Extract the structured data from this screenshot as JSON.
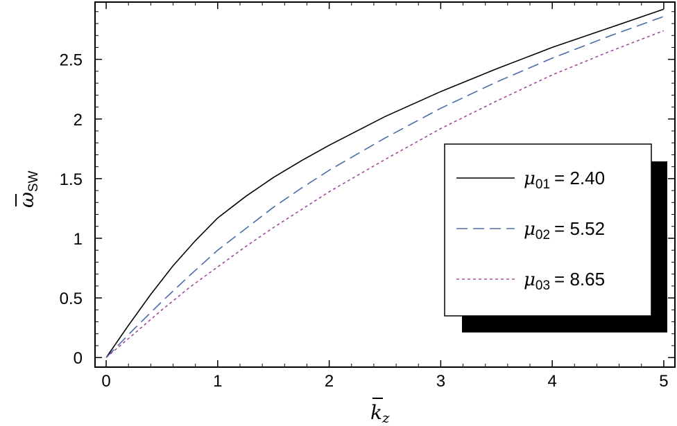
{
  "chart_data": {
    "type": "line",
    "title": "",
    "xlabel": "k_z",
    "ylabel": "ω_SW",
    "xlim": [
      -0.1,
      5.1
    ],
    "ylim": [
      -0.08,
      2.98
    ],
    "xticks": [
      0,
      1,
      2,
      3,
      4,
      5
    ],
    "xtick_labels": [
      "0",
      "1",
      "2",
      "3",
      "4",
      "5"
    ],
    "yticks": [
      0,
      0.5,
      1,
      1.5,
      2,
      2.5
    ],
    "ytick_labels": [
      "0",
      "0.5",
      "1",
      "1.5",
      "2",
      "2.5"
    ],
    "grid": false,
    "legend_position": "right",
    "series": [
      {
        "name": "μ01 = 2.40",
        "symbol": "μ",
        "sub": "01",
        "value_text": "= 2.40",
        "color": "#000000",
        "dash": "solid",
        "x": [
          0,
          0.2,
          0.4,
          0.6,
          0.8,
          1.0,
          1.25,
          1.5,
          1.75,
          2.0,
          2.5,
          3.0,
          3.5,
          4.0,
          4.5,
          5.0
        ],
        "y": [
          0,
          0.27,
          0.53,
          0.77,
          0.98,
          1.17,
          1.35,
          1.51,
          1.65,
          1.78,
          2.02,
          2.23,
          2.42,
          2.6,
          2.76,
          2.92
        ]
      },
      {
        "name": "μ02 = 5.52",
        "symbol": "μ",
        "sub": "02",
        "value_text": "= 5.52",
        "color": "#4a6aaa",
        "dash": "long",
        "x": [
          0,
          0.25,
          0.5,
          0.75,
          1.0,
          1.25,
          1.5,
          1.75,
          2.0,
          2.5,
          3.0,
          3.5,
          4.0,
          4.5,
          5.0
        ],
        "y": [
          0,
          0.24,
          0.47,
          0.69,
          0.9,
          1.08,
          1.26,
          1.42,
          1.57,
          1.84,
          2.09,
          2.31,
          2.51,
          2.69,
          2.86
        ]
      },
      {
        "name": "μ03 = 8.65",
        "symbol": "μ",
        "sub": "03",
        "value_text": "= 8.65",
        "color": "#a04a9a",
        "dash": "short",
        "x": [
          0,
          0.25,
          0.5,
          0.75,
          1.0,
          1.25,
          1.5,
          1.75,
          2.0,
          2.5,
          3.0,
          3.5,
          4.0,
          4.5,
          5.0
        ],
        "y": [
          0,
          0.2,
          0.4,
          0.59,
          0.76,
          0.93,
          1.09,
          1.24,
          1.39,
          1.66,
          1.92,
          2.15,
          2.37,
          2.56,
          2.74
        ]
      }
    ]
  }
}
